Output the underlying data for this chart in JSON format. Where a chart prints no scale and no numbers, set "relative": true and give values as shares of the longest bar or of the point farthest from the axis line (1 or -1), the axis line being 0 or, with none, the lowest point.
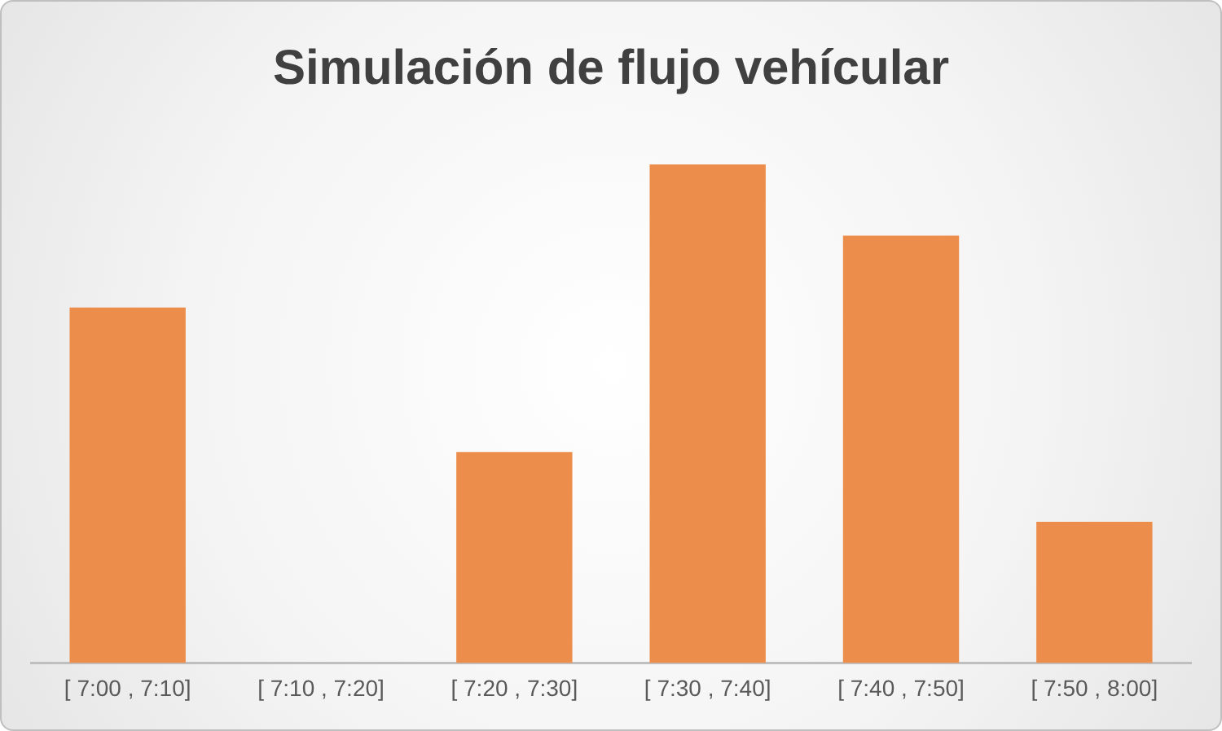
{
  "chart_data": {
    "type": "bar",
    "title": "Simulación de flujo vehícular",
    "categories": [
      "[ 7:00 , 7:10]",
      "[ 7:10 , 7:20]",
      "[ 7:20 , 7:30]",
      "[ 7:30 , 7:40]",
      "[ 7:40 , 7:50]",
      "[ 7:50 , 8:00]"
    ],
    "values": [
      0.713,
      0,
      0.423,
      1,
      0.857,
      0.283
    ],
    "color": "#ed8d4b",
    "relative": true
  }
}
